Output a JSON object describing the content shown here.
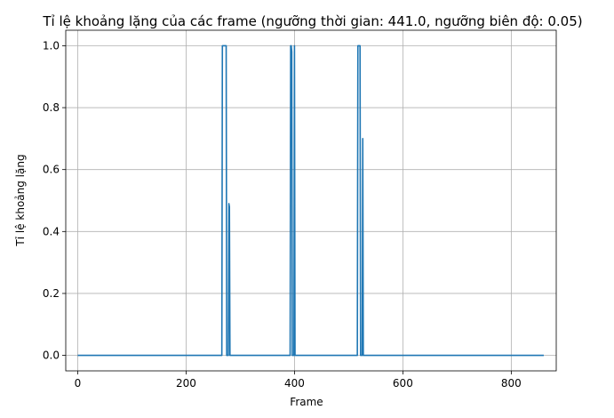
{
  "chart_data": {
    "type": "line",
    "title": "Tỉ lệ khoảng lặng của các frame (ngưỡng thời gian: 441.0, ngưỡng biên độ: 0.05)",
    "xlabel": "Frame",
    "ylabel": "Tỉ lệ khoảng lặng",
    "xlim": [
      -22,
      883
    ],
    "ylim": [
      -0.05,
      1.05
    ],
    "xticks": [
      0,
      200,
      400,
      600,
      800
    ],
    "yticks": [
      0.0,
      0.2,
      0.4,
      0.6,
      0.8,
      1.0
    ],
    "xtick_labels": [
      "0",
      "200",
      "400",
      "600",
      "800"
    ],
    "ytick_labels": [
      "0.0",
      "0.2",
      "0.4",
      "0.6",
      "0.8",
      "1.0"
    ],
    "grid": true,
    "legend": "none",
    "color": "#1f77b4",
    "series": [
      {
        "x": [
          0,
          266,
          267,
          268,
          269,
          270,
          271,
          272,
          273,
          274,
          275,
          276,
          277,
          278,
          279,
          280,
          281,
          282,
          392,
          393,
          394,
          395,
          396,
          397,
          398,
          399,
          400,
          401,
          402,
          403,
          516,
          517,
          518,
          519,
          520,
          521,
          522,
          523,
          524,
          525,
          526,
          527,
          860
        ],
        "y": [
          0.0,
          0.0,
          1.0,
          1.0,
          1.0,
          1.0,
          1.0,
          1.0,
          1.0,
          1.0,
          0.0,
          0.0,
          0.0,
          0.0,
          0.49,
          0.48,
          0.0,
          0.0,
          0.0,
          1.0,
          1.0,
          0.98,
          0.0,
          0.0,
          0.0,
          0.0,
          1.0,
          0.0,
          0.0,
          0.0,
          0.0,
          1.0,
          1.0,
          1.0,
          1.0,
          1.0,
          0.0,
          0.0,
          0.0,
          0.0,
          0.7,
          0.0,
          0.0
        ]
      }
    ]
  }
}
